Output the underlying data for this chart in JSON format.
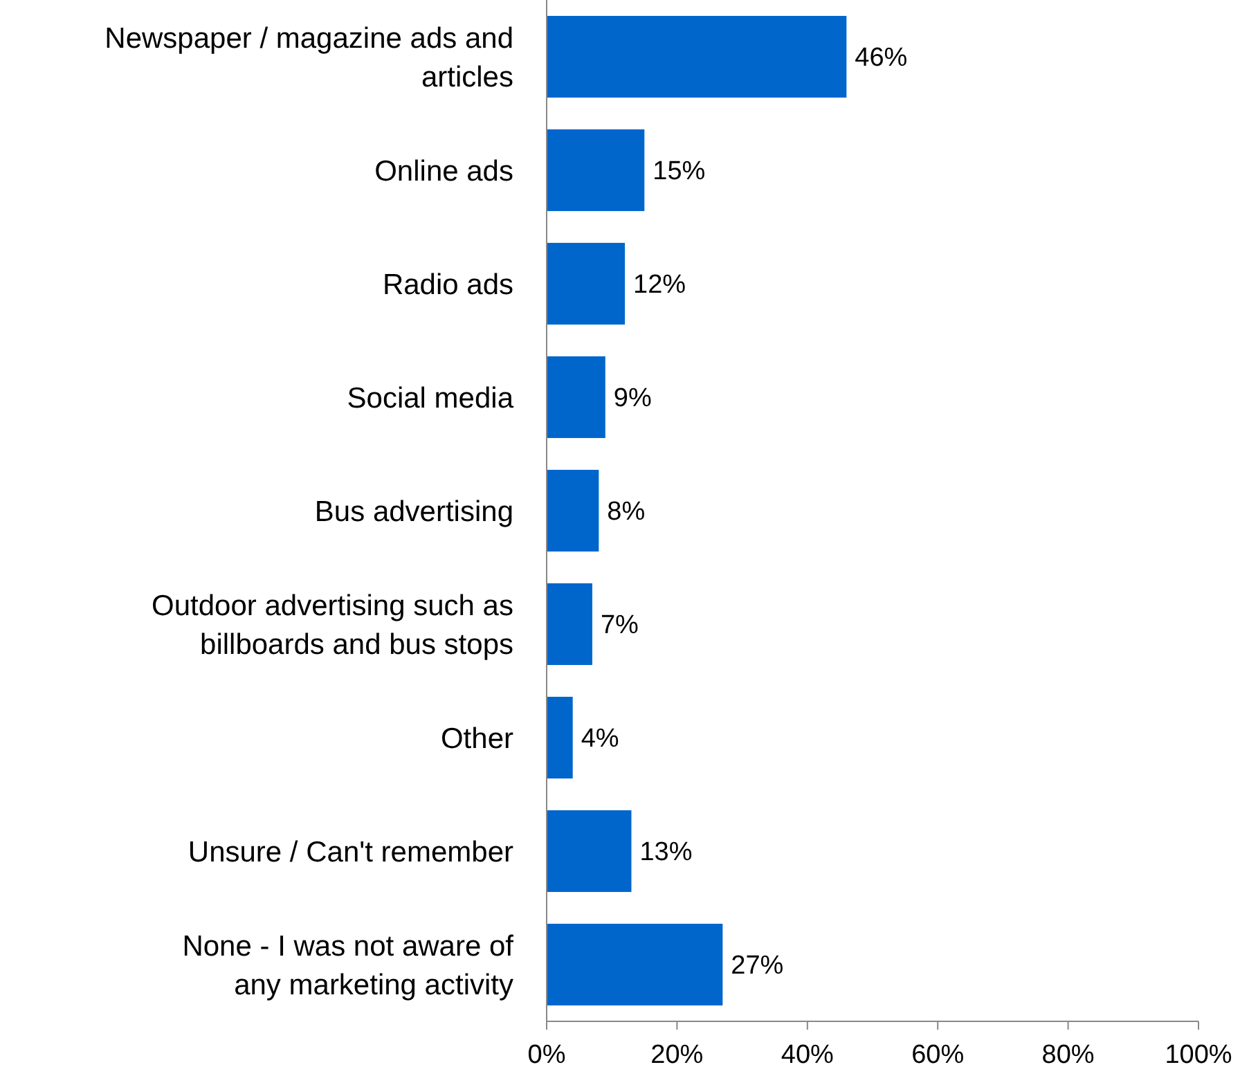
{
  "chart_data": {
    "type": "bar",
    "orientation": "horizontal",
    "categories": [
      "Newspaper / magazine ads and articles",
      "Online ads",
      "Radio ads",
      "Social media",
      "Bus advertising",
      "Outdoor advertising such as billboards and bus stops",
      "Other",
      "Unsure / Can't remember",
      "None - I was not aware of any marketing activity"
    ],
    "values": [
      46,
      15,
      12,
      9,
      8,
      7,
      4,
      13,
      27
    ],
    "value_labels": [
      "46%",
      "15%",
      "12%",
      "9%",
      "8%",
      "7%",
      "4%",
      "13%",
      "27%"
    ],
    "color": "#0066cc",
    "xlim": [
      0,
      100
    ],
    "xticks": [
      {
        "value": 0,
        "label": "0%"
      },
      {
        "value": 20,
        "label": "20%"
      },
      {
        "value": 40,
        "label": "40%"
      },
      {
        "value": 60,
        "label": "60%"
      },
      {
        "value": 80,
        "label": "80%"
      },
      {
        "value": 100,
        "label": "100%"
      }
    ],
    "grid": false
  }
}
